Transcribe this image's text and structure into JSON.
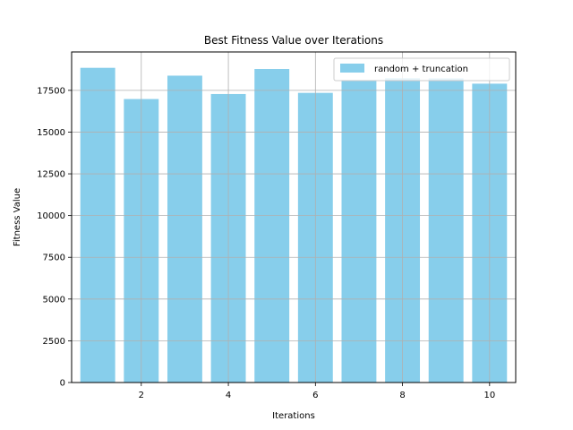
{
  "chart_data": {
    "type": "bar",
    "title": "Best Fitness Value over Iterations",
    "xlabel": "Iterations",
    "ylabel": "Fitness Value",
    "x": [
      1,
      2,
      3,
      4,
      5,
      6,
      7,
      8,
      9,
      10
    ],
    "series": [
      {
        "name": "random + truncation",
        "color": "#87ceeb",
        "values": [
          18850,
          16980,
          18380,
          17280,
          18780,
          17350,
          18080,
          18230,
          18220,
          17900
        ]
      }
    ],
    "xticks": [
      2,
      4,
      6,
      8,
      10
    ],
    "xlim": [
      0.4,
      10.6
    ],
    "yticks": [
      0,
      2500,
      5000,
      7500,
      10000,
      12500,
      15000,
      17500
    ],
    "ylim": [
      0,
      19800
    ],
    "grid": true,
    "legend_position": "top-right"
  }
}
